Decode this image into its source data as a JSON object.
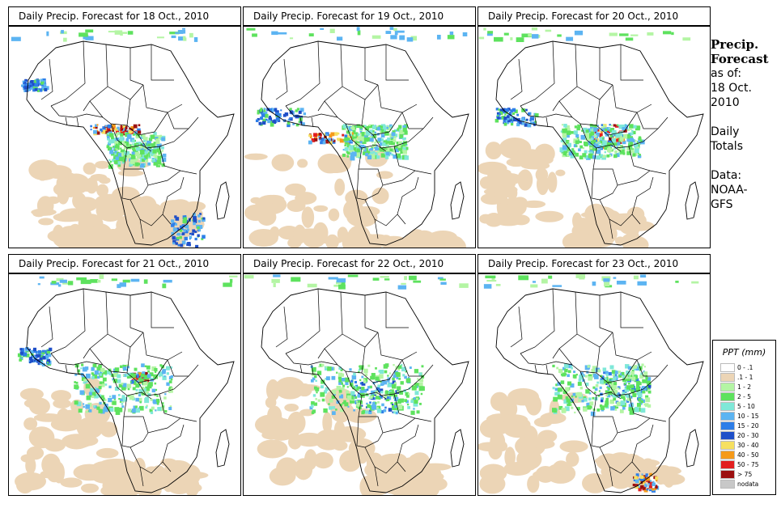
{
  "panels": [
    {
      "title": "Daily Precip. Forecast for  18 Oct., 2010"
    },
    {
      "title": "Daily Precip. Forecast for  19 Oct., 2010"
    },
    {
      "title": "Daily Precip. Forecast for  20 Oct., 2010"
    },
    {
      "title": "Daily Precip. Forecast for  21 Oct., 2010"
    },
    {
      "title": "Daily Precip. Forecast for  22 Oct., 2010"
    },
    {
      "title": "Daily Precip. Forecast for  23 Oct., 2010"
    }
  ],
  "side": {
    "heading_line1": "Precip.",
    "heading_line2": "Forecast",
    "asof": "as of:",
    "date_line1": "18 Oct.",
    "date_line2": "2010",
    "daily1": "Daily",
    "daily2": "Totals",
    "data1": "Data:",
    "data2": "NOAA-",
    "data3": "GFS"
  },
  "legend": {
    "title": "PPT (mm)",
    "items": [
      {
        "label": "0 - .1",
        "color": "#ffffff"
      },
      {
        "label": ".1 - 1",
        "color": "#ecd5b6"
      },
      {
        "label": "1 - 2",
        "color": "#b4f5a4"
      },
      {
        "label": "2 - 5",
        "color": "#5ee25e"
      },
      {
        "label": "5 - 10",
        "color": "#7fe8d8"
      },
      {
        "label": "10 - 15",
        "color": "#5cb4f2"
      },
      {
        "label": "15 - 20",
        "color": "#2e7ee8"
      },
      {
        "label": "20 - 30",
        "color": "#1f4fc8"
      },
      {
        "label": "30 - 40",
        "color": "#f6e060"
      },
      {
        "label": "40 - 50",
        "color": "#f59a1a"
      },
      {
        "label": "50 - 75",
        "color": "#e21f1f"
      },
      {
        "label": "> 75",
        "color": "#9c1010"
      },
      {
        "label": "nodata",
        "color": "#c8c8c8"
      }
    ]
  }
}
